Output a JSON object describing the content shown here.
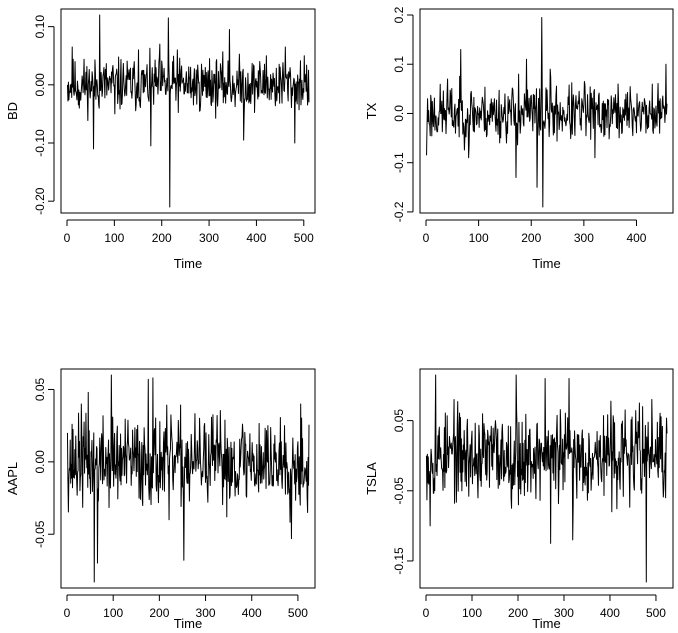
{
  "chart_data": [
    {
      "type": "line",
      "xlabel": "Time",
      "ylabel": "BD",
      "xlim": [
        0,
        511
      ],
      "ylim": [
        -0.21,
        0.12
      ],
      "xticks": [
        0,
        100,
        200,
        300,
        400,
        500
      ],
      "yticks": [
        -0.2,
        -0.1,
        0.0,
        0.1
      ],
      "ytick_labels": [
        "-0.20",
        "-0.10",
        "0.00",
        "0.10"
      ],
      "n": 511,
      "series": [
        {
          "x_start": 1,
          "anchors": [
            [
              0,
              0.0
            ],
            [
              10,
              0.065
            ],
            [
              25,
              -0.04
            ],
            [
              55,
              -0.11
            ],
            [
              68,
              0.12
            ],
            [
              100,
              -0.05
            ],
            [
              150,
              0.06
            ],
            [
              176,
              -0.105
            ],
            [
              195,
              0.07
            ],
            [
              213,
              0.115
            ],
            [
              216,
              -0.21
            ],
            [
              232,
              0.06
            ],
            [
              300,
              0.045
            ],
            [
              342,
              0.095
            ],
            [
              372,
              -0.095
            ],
            [
              420,
              0.05
            ],
            [
              460,
              0.065
            ],
            [
              480,
              -0.1
            ],
            [
              500,
              0.05
            ],
            [
              510,
              -0.03
            ]
          ],
          "seed": 11,
          "noise": 0.022
        }
      ],
      "grid": false
    },
    {
      "type": "line",
      "xlabel": "Time",
      "ylabel": "TX",
      "xlim": [
        0,
        458
      ],
      "ylim": [
        -0.19,
        0.2
      ],
      "xticks": [
        0,
        100,
        200,
        300,
        400
      ],
      "yticks": [
        -0.2,
        -0.1,
        0.0,
        0.1,
        0.2
      ],
      "ytick_labels": [
        "-0.2",
        "-0.1",
        "0.0",
        "0.1",
        "0.2"
      ],
      "n": 458,
      "series": [
        {
          "x_start": 1,
          "anchors": [
            [
              0,
              -0.085
            ],
            [
              40,
              0.07
            ],
            [
              65,
              0.13
            ],
            [
              80,
              -0.09
            ],
            [
              170,
              -0.13
            ],
            [
              175,
              0.08
            ],
            [
              190,
              0.11
            ],
            [
              210,
              -0.15
            ],
            [
              215,
              0.05
            ],
            [
              219,
              0.195
            ],
            [
              221,
              -0.19
            ],
            [
              235,
              0.09
            ],
            [
              300,
              0.065
            ],
            [
              320,
              -0.09
            ],
            [
              400,
              0.04
            ],
            [
              455,
              0.1
            ]
          ],
          "seed": 23,
          "noise": 0.028
        }
      ],
      "grid": false
    },
    {
      "type": "line",
      "xlabel": "Time",
      "ylabel": "AAPL",
      "xlim": [
        0,
        524
      ],
      "ylim": [
        -0.083,
        0.06
      ],
      "xticks": [
        0,
        100,
        200,
        300,
        400,
        500
      ],
      "yticks": [
        -0.05,
        0.0,
        0.05
      ],
      "ytick_labels": [
        "-0.05",
        "0.00",
        "0.05"
      ],
      "n": 524,
      "series": [
        {
          "x_start": 1,
          "anchors": [
            [
              0,
              0.02
            ],
            [
              30,
              0.04
            ],
            [
              45,
              0.048
            ],
            [
              58,
              -0.083
            ],
            [
              65,
              -0.07
            ],
            [
              95,
              0.06
            ],
            [
              175,
              0.057
            ],
            [
              185,
              0.058
            ],
            [
              220,
              -0.04
            ],
            [
              252,
              -0.068
            ],
            [
              300,
              0.02
            ],
            [
              380,
              0.02
            ],
            [
              470,
              0.025
            ],
            [
              485,
              -0.053
            ],
            [
              505,
              0.04
            ],
            [
              520,
              -0.035
            ]
          ],
          "seed": 37,
          "noise": 0.015
        }
      ],
      "grid": false
    },
    {
      "type": "line",
      "xlabel": "Time",
      "ylabel": "TSLA",
      "xlim": [
        0,
        524
      ],
      "ylim": [
        -0.18,
        0.115
      ],
      "xticks": [
        0,
        100,
        200,
        300,
        400,
        500
      ],
      "yticks": [
        -0.15,
        -0.05,
        0.05
      ],
      "ytick_labels": [
        "-0.15",
        "-0.05",
        "0.05"
      ],
      "n": 524,
      "series": [
        {
          "x_start": 1,
          "anchors": [
            [
              0,
              0.0
            ],
            [
              8,
              -0.1
            ],
            [
              20,
              0.115
            ],
            [
              60,
              0.08
            ],
            [
              100,
              -0.04
            ],
            [
              150,
              0.05
            ],
            [
              195,
              0.115
            ],
            [
              200,
              -0.07
            ],
            [
              258,
              0.11
            ],
            [
              270,
              -0.125
            ],
            [
              310,
              0.11
            ],
            [
              318,
              -0.12
            ],
            [
              400,
              0.02
            ],
            [
              470,
              0.07
            ],
            [
              478,
              -0.18
            ],
            [
              490,
              0.08
            ],
            [
              520,
              -0.06
            ]
          ],
          "seed": 53,
          "noise": 0.03
        }
      ],
      "grid": false
    }
  ]
}
